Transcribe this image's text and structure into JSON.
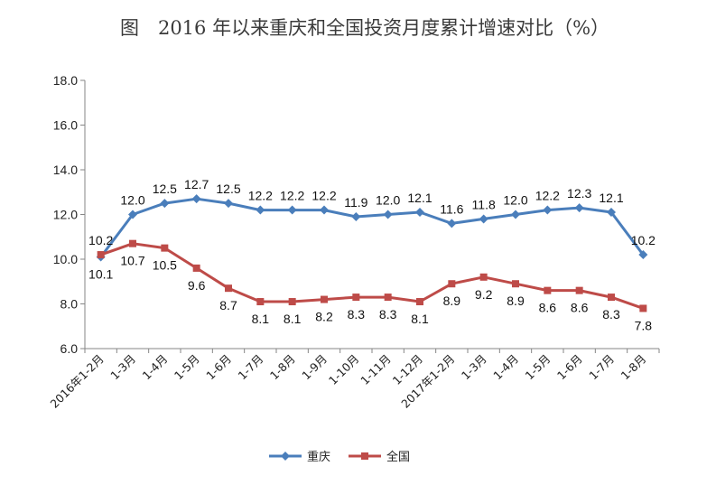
{
  "chart_data": {
    "type": "line",
    "title": "图　2016 年以来重庆和全国投资月度累计增速对比（%）",
    "categories": [
      "2016年1-2月",
      "1-3月",
      "1-4月",
      "1-5月",
      "1-6月",
      "1-7月",
      "1-8月",
      "1-9月",
      "1-10月",
      "1-11月",
      "1-12月",
      "2017年1-2月",
      "1-3月",
      "1-4月",
      "1-5月",
      "1-6月",
      "1-7月",
      "1-8月"
    ],
    "series": [
      {
        "name": "重庆",
        "color": "#4a7ebb",
        "marker": "diamond",
        "values": [
          10.1,
          12.0,
          12.5,
          12.7,
          12.5,
          12.2,
          12.2,
          12.2,
          11.9,
          12.0,
          12.1,
          11.6,
          11.8,
          12.0,
          12.2,
          12.3,
          12.1,
          10.2
        ],
        "labels": [
          "10.1",
          "12.0",
          "12.5",
          "12.7",
          "12.5",
          "12.2",
          "12.2",
          "12.2",
          "11.9",
          "12.0",
          "12.1",
          "11.6",
          "11.8",
          "12.0",
          "12.2",
          "12.3",
          "12.1",
          "10.2"
        ]
      },
      {
        "name": "全国",
        "color": "#be4b48",
        "marker": "square",
        "values": [
          10.2,
          10.7,
          10.5,
          9.6,
          8.7,
          8.1,
          8.1,
          8.2,
          8.3,
          8.3,
          8.1,
          8.9,
          9.2,
          8.9,
          8.6,
          8.6,
          8.3,
          7.8
        ],
        "labels": [
          "10.2",
          "10.7",
          "10.5",
          "9.6",
          "8.7",
          "8.1",
          "8.1",
          "8.2",
          "8.3",
          "8.3",
          "8.1",
          "8.9",
          "9.2",
          "8.9",
          "8.6",
          "8.6",
          "8.3",
          "7.8"
        ]
      }
    ],
    "ylim": [
      6.0,
      18.0
    ],
    "yticks": [
      "6.0",
      "8.0",
      "10.0",
      "12.0",
      "14.0",
      "16.0",
      "18.0"
    ],
    "xlabel": "",
    "ylabel": "",
    "grid": false,
    "legend": "bottom"
  }
}
